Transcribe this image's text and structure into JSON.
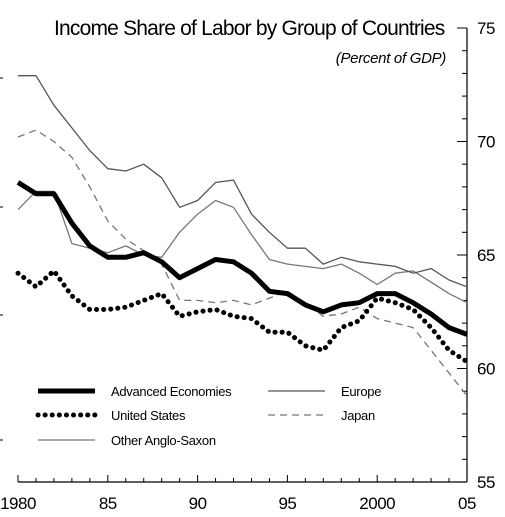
{
  "chart_data": {
    "type": "line",
    "title": "Income Share of Labor by Group of Countries",
    "subtitle": "(Percent of GDP)",
    "xlabel": "",
    "ylabel": "",
    "xlim": [
      1980,
      2005
    ],
    "ylim": [
      55,
      75
    ],
    "y_axis_position": "right",
    "x_ticks": [
      1980,
      1985,
      1990,
      1995,
      2000,
      2005
    ],
    "x_tick_labels": [
      "1980",
      "85",
      "90",
      "95",
      "2000",
      "05"
    ],
    "y_ticks": [
      55,
      60,
      65,
      70,
      75
    ],
    "y_tick_labels": [
      "55",
      "60",
      "65",
      "70",
      "75"
    ],
    "grid": false,
    "legend_position": "bottom-left",
    "x": [
      1980,
      1981,
      1982,
      1983,
      1984,
      1985,
      1986,
      1987,
      1988,
      1989,
      1990,
      1991,
      1992,
      1993,
      1994,
      1995,
      1996,
      1997,
      1998,
      1999,
      2000,
      2001,
      2002,
      2003,
      2004,
      2005
    ],
    "series": [
      {
        "name": "Advanced Economies",
        "style": "thick-solid",
        "color": "#000000",
        "values": [
          68.2,
          67.7,
          67.7,
          66.4,
          65.4,
          64.9,
          64.9,
          65.1,
          64.7,
          64.0,
          64.4,
          64.8,
          64.7,
          64.2,
          63.4,
          63.3,
          62.8,
          62.5,
          62.8,
          62.9,
          63.3,
          63.3,
          62.9,
          62.4,
          61.8,
          61.5
        ]
      },
      {
        "name": "United States",
        "style": "thick-dotted",
        "color": "#000000",
        "values": [
          64.2,
          63.6,
          64.3,
          63.2,
          62.6,
          62.6,
          62.7,
          63.0,
          63.3,
          62.3,
          62.5,
          62.6,
          62.3,
          62.2,
          61.6,
          61.6,
          61.0,
          60.8,
          61.8,
          62.1,
          63.1,
          62.9,
          62.6,
          61.8,
          60.8,
          60.3
        ]
      },
      {
        "name": "Other Anglo-Saxon",
        "style": "thin-solid",
        "color": "#777777",
        "values": [
          67.0,
          67.8,
          67.8,
          65.5,
          65.3,
          65.1,
          65.4,
          65.0,
          64.9,
          66.0,
          66.8,
          67.4,
          67.1,
          65.9,
          64.8,
          64.6,
          64.5,
          64.4,
          64.6,
          64.2,
          63.7,
          64.2,
          64.3,
          63.8,
          63.3,
          62.9
        ]
      },
      {
        "name": "Europe",
        "style": "thin-solid",
        "color": "#555555",
        "values": [
          72.9,
          72.9,
          71.6,
          70.6,
          69.6,
          68.8,
          68.7,
          69.0,
          68.4,
          67.1,
          67.4,
          68.2,
          68.3,
          66.8,
          66.0,
          65.3,
          65.3,
          64.6,
          64.9,
          64.7,
          64.6,
          64.5,
          64.2,
          64.4,
          63.9,
          63.6
        ]
      },
      {
        "name": "Japan",
        "style": "thin-dashed",
        "color": "#777777",
        "values": [
          70.2,
          70.5,
          70.0,
          69.3,
          68.0,
          66.5,
          65.7,
          65.2,
          64.6,
          63.0,
          63.0,
          62.9,
          63.0,
          62.8,
          63.1,
          63.4,
          62.9,
          62.3,
          62.4,
          62.7,
          62.2,
          62.0,
          61.8,
          60.8,
          59.8,
          58.8
        ]
      }
    ]
  }
}
